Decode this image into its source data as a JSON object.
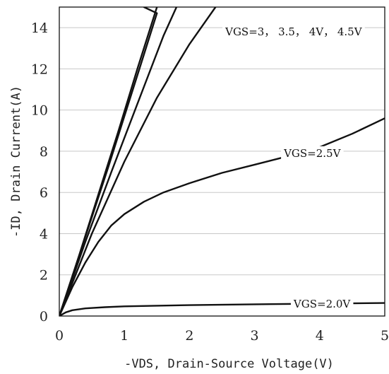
{
  "chart_data": {
    "type": "line",
    "title": "",
    "xlabel": "-VDS, Drain-Source Voltage(V)",
    "ylabel": "-ID, Drain Current(A)",
    "xlim": [
      0,
      5
    ],
    "ylim": [
      0,
      15
    ],
    "xticks": [
      0,
      1,
      2,
      3,
      4,
      5
    ],
    "yticks": [
      0,
      2,
      4,
      6,
      8,
      10,
      12,
      14
    ],
    "grid": "horizontal",
    "series": [
      {
        "name": "VGS=3, 3.5, 4V, 4.5V",
        "x": [
          0,
          0.3,
          0.6,
          0.9,
          1.2,
          1.5
        ],
        "y": [
          0,
          2.9,
          5.9,
          8.9,
          12.0,
          15.0
        ]
      },
      {
        "name": "VGS=3, 3.5, 4V, 4.5V",
        "x": [
          0,
          0.4,
          0.8,
          1.2,
          1.6,
          1.8
        ],
        "y": [
          0,
          3.6,
          7.0,
          10.3,
          13.6,
          15.0
        ]
      },
      {
        "name": "VGS=3, 3.5, 4V, 4.5V",
        "x": [
          0,
          0.5,
          1.0,
          1.5,
          2.0,
          2.4
        ],
        "y": [
          0,
          4.0,
          7.5,
          10.6,
          13.2,
          15.0
        ]
      },
      {
        "name": "VGS=3, 3.5, 4V, 4.5V",
        "x": [
          0,
          0.25,
          0.5,
          0.75,
          1.0,
          1.25,
          1.5,
          1.3
        ],
        "y": [
          0,
          2.4,
          4.8,
          7.2,
          9.7,
          12.2,
          14.7,
          15.0
        ]
      },
      {
        "name": "VGS=2.5V",
        "x": [
          0,
          0.2,
          0.4,
          0.6,
          0.8,
          1.0,
          1.3,
          1.6,
          2.0,
          2.5,
          3.0,
          3.5,
          4.0,
          4.5,
          5.0
        ],
        "y": [
          0,
          1.4,
          2.6,
          3.6,
          4.4,
          4.95,
          5.55,
          6.0,
          6.45,
          6.95,
          7.35,
          7.75,
          8.2,
          8.85,
          9.6
        ]
      },
      {
        "name": "VGS=2.0V",
        "x": [
          0,
          0.1,
          0.2,
          0.4,
          0.7,
          1.0,
          1.5,
          2.0,
          3.0,
          4.0,
          5.0
        ],
        "y": [
          0,
          0.18,
          0.28,
          0.37,
          0.43,
          0.47,
          0.5,
          0.53,
          0.57,
          0.6,
          0.63
        ]
      }
    ],
    "annotations": [
      {
        "text": "VGS=3， 3.5， 4V， 4.5V",
        "x": 2.55,
        "y": 13.8
      },
      {
        "text": "VGS=2.5V",
        "x": 3.45,
        "y": 7.9
      },
      {
        "text": "VGS=2.0V",
        "x": 3.6,
        "y": 0.58
      }
    ]
  }
}
